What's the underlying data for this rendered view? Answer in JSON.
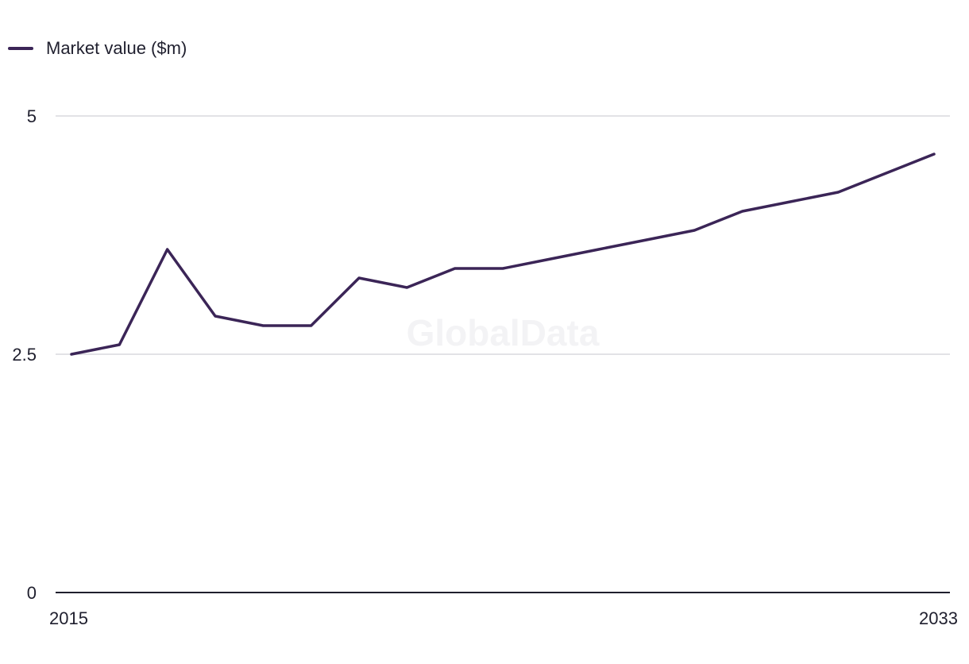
{
  "chart_data": {
    "type": "line",
    "title": "",
    "xlabel": "",
    "ylabel": "",
    "watermark": "GlobalData",
    "x": [
      2015,
      2016,
      2017,
      2018,
      2019,
      2020,
      2021,
      2022,
      2023,
      2024,
      2025,
      2026,
      2027,
      2028,
      2029,
      2030,
      2031,
      2032,
      2033
    ],
    "x_tick_labels": [
      "2015",
      "2033"
    ],
    "y_tick_labels": [
      "5",
      "2.5",
      "0"
    ],
    "y_ticks": [
      5,
      2.5,
      0
    ],
    "xlim": [
      2015,
      2033
    ],
    "ylim": [
      0,
      5
    ],
    "grid": "horizontal",
    "legend_position": "top-left",
    "series": [
      {
        "name": "Market value ($m)",
        "color": "#3b2557",
        "values": [
          2.5,
          2.6,
          3.6,
          2.9,
          2.8,
          2.8,
          3.3,
          3.2,
          3.4,
          3.4,
          3.5,
          3.6,
          3.7,
          3.8,
          4.0,
          4.1,
          4.2,
          4.4,
          4.6
        ]
      }
    ]
  }
}
